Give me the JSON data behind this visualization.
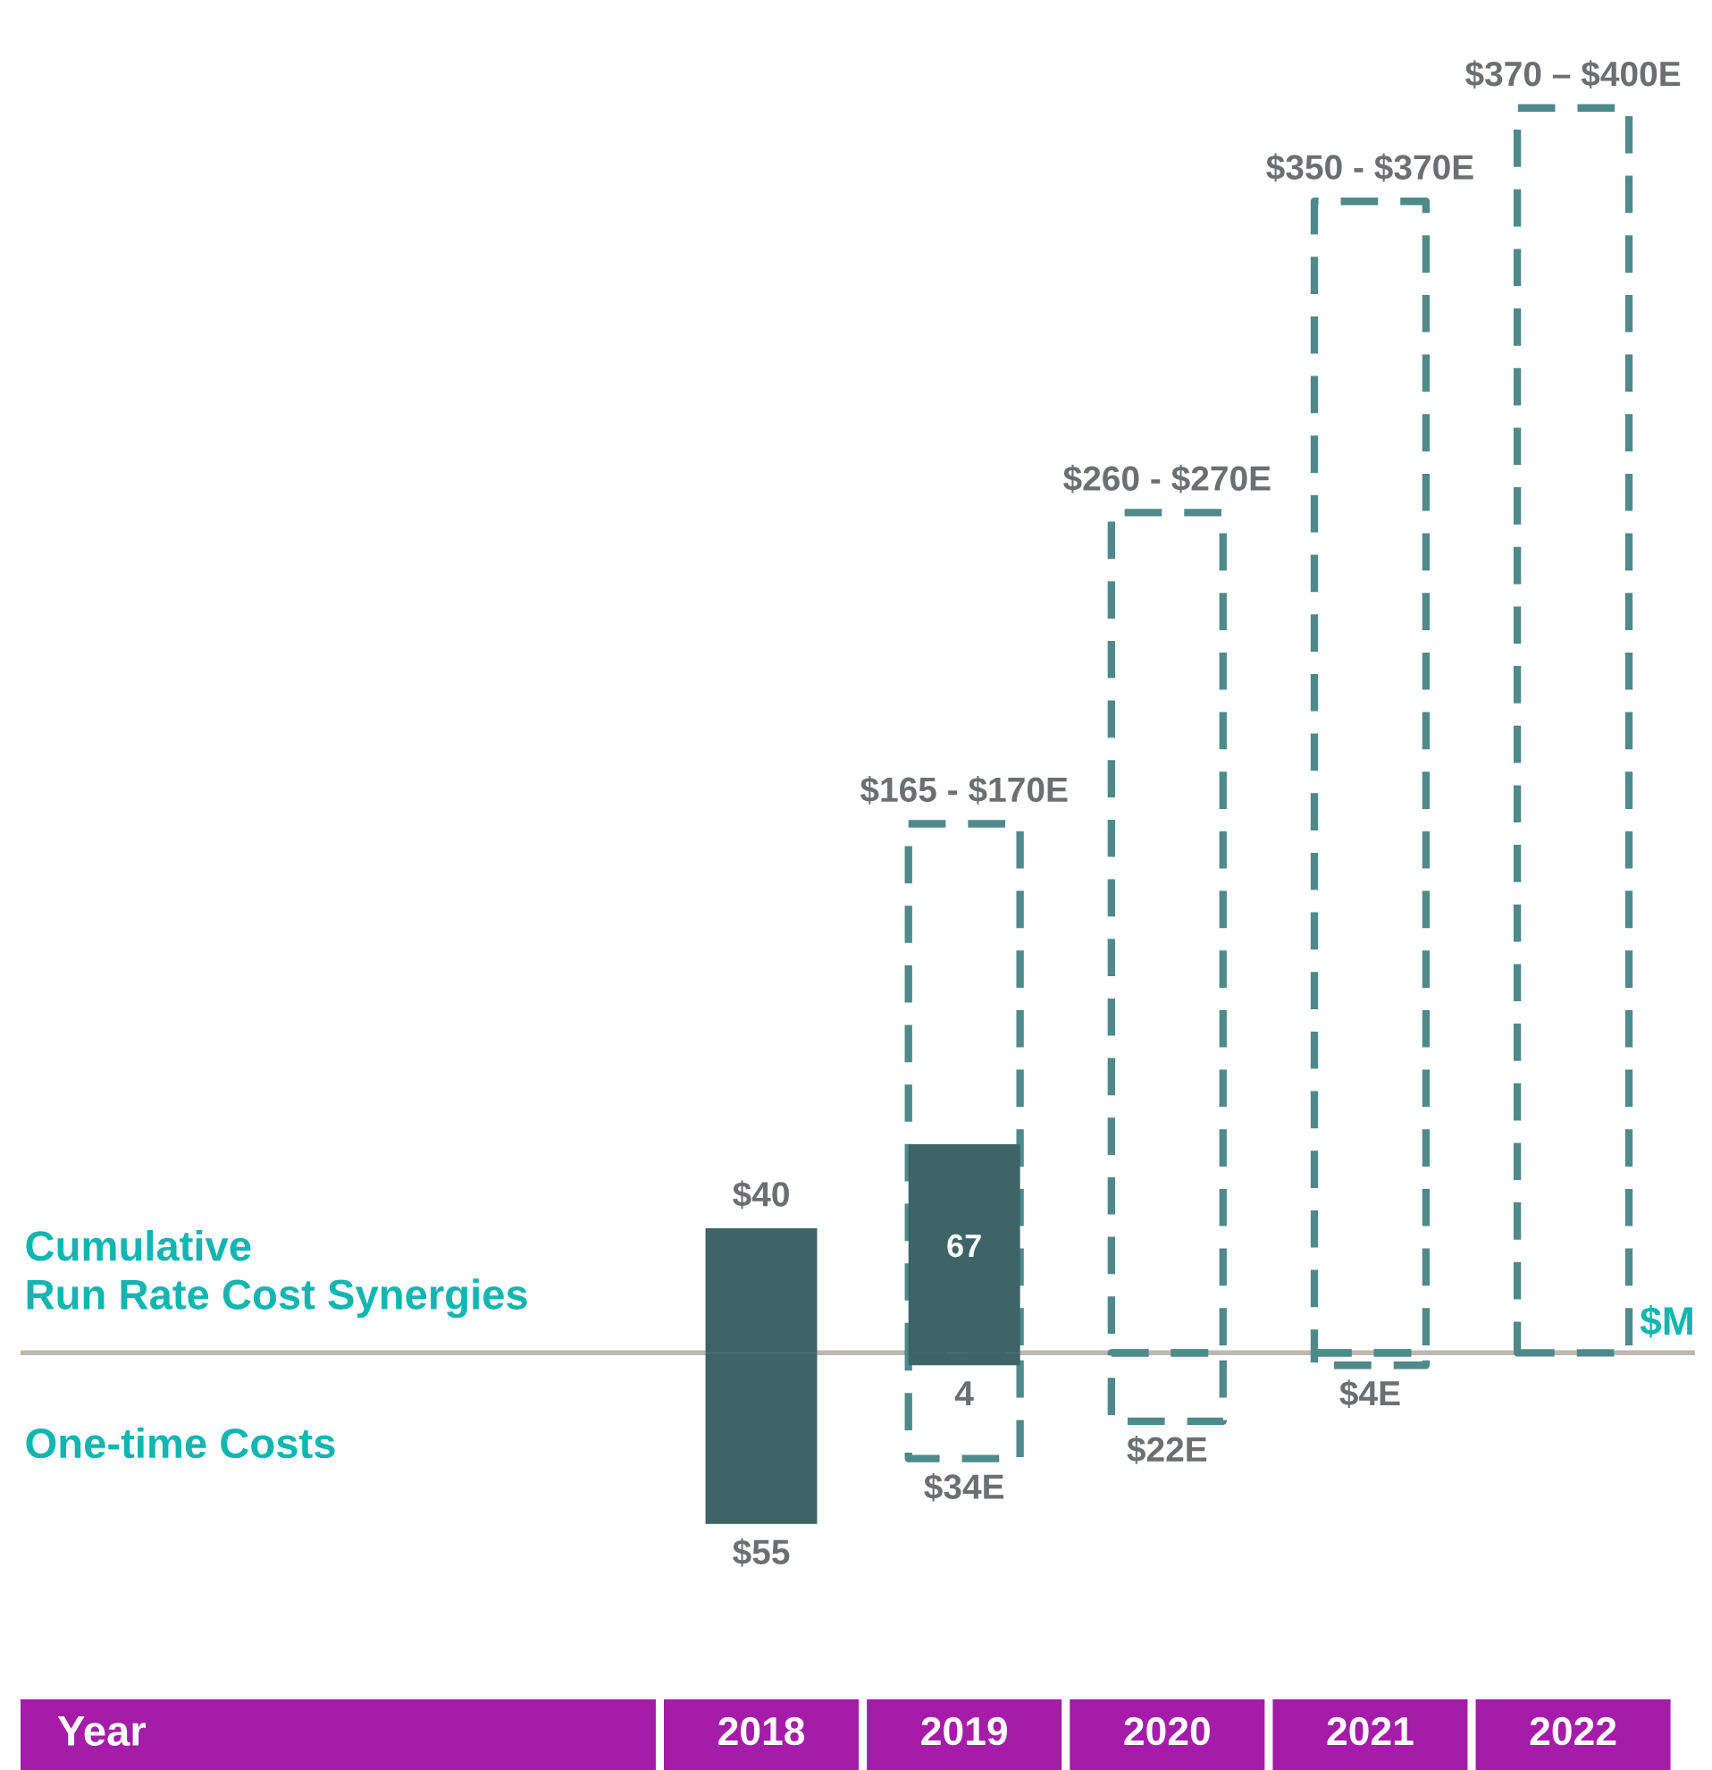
{
  "chart_data": {
    "type": "bar",
    "ylabel": "$M",
    "categories": [
      "2018",
      "2019",
      "2020",
      "2021",
      "2022"
    ],
    "series": [
      {
        "color": "#4f8a8b",
        "line_style": "dashed",
        "values": [
          null,
          170,
          270,
          370,
          400
        ]
      },
      {
        "color": "#3d6466",
        "values": [
          40,
          67,
          null,
          null,
          null
        ],
        "value_labels": [
          "$40",
          "67",
          null,
          null,
          null
        ]
      },
      {
        "color": "#4f8a8b",
        "line_style": "dashed",
        "values": [
          null,
          -34,
          -22,
          -4,
          null
        ]
      },
      {
        "color": "#3d6466",
        "values": [
          -55,
          -4,
          null,
          null,
          null
        ]
      }
    ],
    "ref_lines": [
      {
        "axis": "y",
        "value": 0,
        "color": "#bfb8b0"
      }
    ],
    "annotations": [
      "Cumulative\nRun Rate Cost Synergies",
      "One-time Costs",
      "Year",
      {
        "text": "$165 - $170E",
        "x": "2019",
        "y": 170
      },
      {
        "text": "$260 - $270E",
        "x": "2020",
        "y": 270
      },
      {
        "text": "$350 - $370E",
        "x": "2021",
        "y": 370
      },
      {
        "text": "$370 – $400E",
        "x": "2022",
        "y": 400
      },
      {
        "text": "$55",
        "x": "2018",
        "y": -55
      },
      {
        "text": "4",
        "x": "2019",
        "y": -4
      },
      {
        "text": "$34E",
        "x": "2019",
        "y": -34
      },
      {
        "text": "$22E",
        "x": "2020",
        "y": -22
      },
      {
        "text": "$4E",
        "x": "2021",
        "y": -4
      }
    ],
    "tick_labels": "x"
  }
}
